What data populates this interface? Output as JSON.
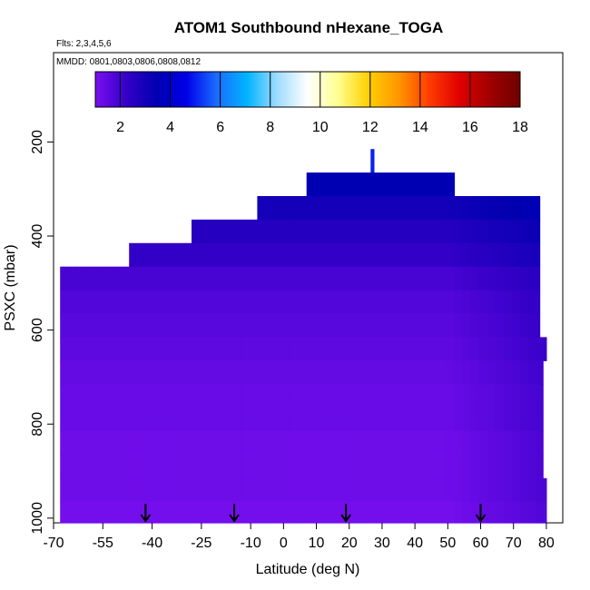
{
  "chart_data": {
    "type": "heatmap",
    "title": "ATOM1 Southbound nHexane_TOGA",
    "flights_note": "Flts: 2,3,4,5,6",
    "dates_note": "MMDD: 0801,0803,0806,0808,0812",
    "xlabel": "Latitude (deg N)",
    "ylabel": "PSXC (mbar)",
    "xlim": [
      -70,
      85
    ],
    "ylim": [
      1010,
      10
    ],
    "x_ticks": [
      -70,
      -55,
      -40,
      -25,
      -10,
      0,
      10,
      20,
      30,
      40,
      50,
      60,
      70,
      80
    ],
    "x_tick_labels": [
      "-70",
      "-55",
      "-40",
      "-25",
      "-10",
      "0",
      "10",
      "20",
      "30",
      "40",
      "50",
      "60",
      "70",
      "80"
    ],
    "y_ticks": [
      200,
      400,
      600,
      800,
      1000
    ],
    "y_tick_labels": [
      "200",
      "400",
      "600",
      "800",
      "1000"
    ],
    "colorbar": {
      "min": 1,
      "max": 18,
      "ticks": [
        2,
        4,
        6,
        8,
        10,
        12,
        14,
        16,
        18
      ],
      "tick_labels": [
        "2",
        "4",
        "6",
        "8",
        "10",
        "12",
        "14",
        "16",
        "18"
      ],
      "colors": [
        "#7a0ff0",
        "#3600c8",
        "#0000b0",
        "#0000e8",
        "#1a6cff",
        "#00b4ff",
        "#a0dcff",
        "#ffffff",
        "#ffff90",
        "#ffd000",
        "#ff9600",
        "#ff3c00",
        "#e00000",
        "#a00000",
        "#700000"
      ]
    },
    "arrows_latitude": [
      -42,
      -15,
      19,
      60
    ],
    "profile_levels": [
      {
        "p_top": 215,
        "p_bottom": 265,
        "lat_min": 26.5,
        "lat_max": 27.5,
        "value": 5.0
      },
      {
        "p_top": 265,
        "p_bottom": 315,
        "lat_min": 7,
        "lat_max": 52,
        "value": 3.5
      },
      {
        "p_top": 315,
        "p_bottom": 365,
        "lat_min": -8,
        "lat_max": 78,
        "value": 3.0
      },
      {
        "p_top": 365,
        "p_bottom": 415,
        "lat_min": -28,
        "lat_max": 78,
        "value": 2.6
      },
      {
        "p_top": 415,
        "p_bottom": 465,
        "lat_min": -47,
        "lat_max": 78,
        "value": 2.3
      },
      {
        "p_top": 465,
        "p_bottom": 515,
        "lat_min": -68,
        "lat_max": 78,
        "value": 1.9
      },
      {
        "p_top": 515,
        "p_bottom": 565,
        "lat_min": -68,
        "lat_max": 78,
        "value": 1.7
      },
      {
        "p_top": 565,
        "p_bottom": 615,
        "lat_min": -68,
        "lat_max": 78,
        "value": 1.6
      },
      {
        "p_top": 615,
        "p_bottom": 665,
        "lat_min": -68,
        "lat_max": 80,
        "value": 1.5
      },
      {
        "p_top": 665,
        "p_bottom": 715,
        "lat_min": -68,
        "lat_max": 79,
        "value": 1.4
      },
      {
        "p_top": 715,
        "p_bottom": 765,
        "lat_min": -68,
        "lat_max": 79,
        "value": 1.3
      },
      {
        "p_top": 765,
        "p_bottom": 815,
        "lat_min": -68,
        "lat_max": 79,
        "value": 1.3
      },
      {
        "p_top": 815,
        "p_bottom": 865,
        "lat_min": -68,
        "lat_max": 79,
        "value": 1.2
      },
      {
        "p_top": 865,
        "p_bottom": 915,
        "lat_min": -68,
        "lat_max": 79,
        "value": 1.2
      },
      {
        "p_top": 915,
        "p_bottom": 965,
        "lat_min": -68,
        "lat_max": 80,
        "value": 1.2
      },
      {
        "p_top": 965,
        "p_bottom": 1010,
        "lat_min": -68,
        "lat_max": 80,
        "value": 1.1
      }
    ]
  }
}
